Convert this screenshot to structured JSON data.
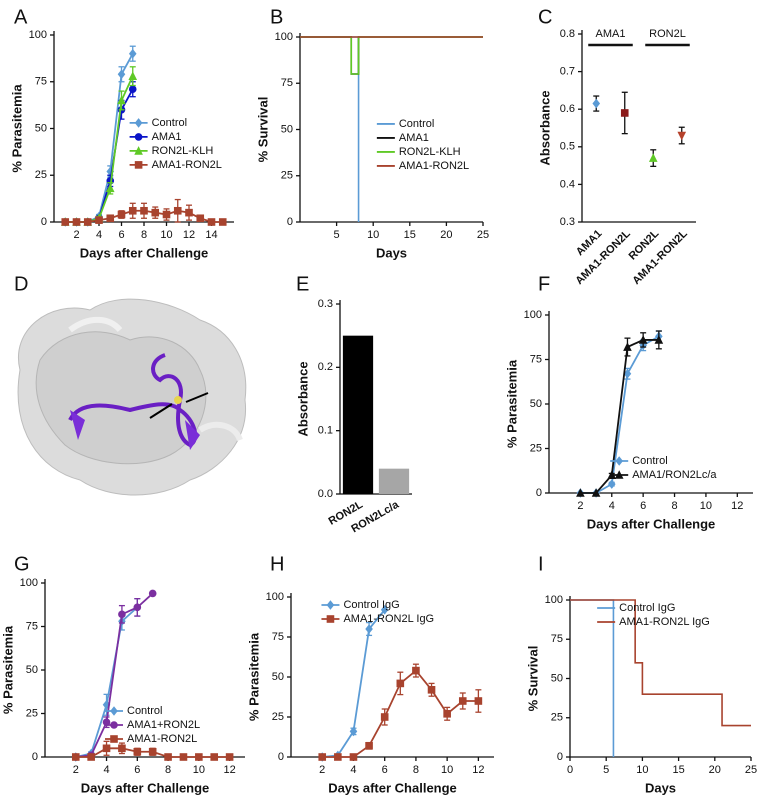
{
  "chart_data": [
    {
      "panel": "A",
      "type": "line",
      "xlabel": "Days after Challenge",
      "ylabel": "% Parasitemia",
      "xlim": [
        0,
        16
      ],
      "xticks": [
        2,
        4,
        6,
        8,
        10,
        12,
        14
      ],
      "ylim": [
        0,
        100
      ],
      "yticks": [
        0,
        25,
        50,
        75,
        100
      ],
      "legend": "center right",
      "series": [
        {
          "name": "Control",
          "color": "#5b9bd5",
          "marker": "diamond",
          "x": [
            1,
            2,
            3,
            4,
            5,
            6,
            7
          ],
          "values": [
            0,
            0,
            0,
            3,
            27,
            79,
            90
          ],
          "errors": [
            0,
            0,
            0,
            1,
            3,
            4,
            4
          ]
        },
        {
          "name": "AMA1",
          "color": "#0a14c8",
          "marker": "circle",
          "x": [
            1,
            2,
            3,
            4,
            5,
            6,
            7
          ],
          "values": [
            0,
            0,
            0,
            2,
            22,
            60,
            71
          ],
          "errors": [
            0,
            0,
            0,
            1,
            3,
            5,
            4
          ]
        },
        {
          "name": "RON2L-KLH",
          "color": "#5fc926",
          "marker": "triangle",
          "x": [
            1,
            2,
            3,
            4,
            5,
            6,
            7
          ],
          "values": [
            0,
            0,
            0,
            2,
            18,
            65,
            78
          ],
          "errors": [
            0,
            0,
            0,
            1,
            3,
            5,
            5
          ]
        },
        {
          "name": "AMA1-RON2L",
          "color": "#a8432e",
          "marker": "square",
          "x": [
            1,
            2,
            3,
            4,
            5,
            6,
            7,
            8,
            9,
            10,
            11,
            12,
            13,
            14,
            15
          ],
          "values": [
            0,
            0,
            0,
            1,
            2,
            4,
            6,
            6,
            5,
            4,
            6,
            5,
            2,
            0,
            0
          ],
          "errors": [
            0,
            0,
            0,
            1,
            1,
            2,
            4,
            4,
            3,
            3,
            6,
            4,
            1,
            0,
            0
          ]
        }
      ]
    },
    {
      "panel": "B",
      "type": "step",
      "xlabel": "Days",
      "ylabel": "% Survival",
      "xlim": [
        0,
        25
      ],
      "xticks": [
        5,
        10,
        15,
        20,
        25
      ],
      "ylim": [
        0,
        100
      ],
      "yticks": [
        0,
        25,
        50,
        75,
        100
      ],
      "legend": "center right",
      "series": [
        {
          "name": "Control",
          "color": "#5b9bd5",
          "x": [
            0,
            8
          ],
          "values": [
            100,
            0
          ]
        },
        {
          "name": "AMA1",
          "color": "#111111",
          "x": [
            0,
            7,
            8,
            25
          ],
          "values": [
            100,
            80,
            100,
            100
          ]
        },
        {
          "name": "RON2L-KLH",
          "color": "#5fc926",
          "x": [
            0,
            7,
            8,
            25
          ],
          "values": [
            100,
            80,
            100,
            100
          ]
        },
        {
          "name": "AMA1-RON2L",
          "color": "#a8432e",
          "x": [
            0,
            8,
            25
          ],
          "values": [
            100,
            100,
            100
          ]
        }
      ]
    },
    {
      "panel": "C",
      "type": "dot",
      "ylabel": "Absorbance",
      "categories": [
        "AMA1",
        "AMA1-RON2L",
        "RON2L",
        "AMA1-RON2L"
      ],
      "values": [
        0.615,
        0.59,
        0.47,
        0.53
      ],
      "errors": [
        0.02,
        0.055,
        0.022,
        0.022
      ],
      "colors": [
        "#5b9bd5",
        "#8b1a1a",
        "#5fc926",
        "#b5412b"
      ],
      "markers": [
        "diamond",
        "square",
        "triangle",
        "triangle-down"
      ],
      "annotations": [
        "AMA1",
        "RON2L"
      ],
      "ylim": [
        0.3,
        0.8
      ],
      "yticks": [
        0.3,
        0.4,
        0.5,
        0.6,
        0.7,
        0.8
      ]
    },
    {
      "panel": "D",
      "type": "image"
    },
    {
      "panel": "E",
      "type": "bar",
      "ylabel": "Absorbance",
      "categories": [
        "RON2L",
        "RON2Lc/a"
      ],
      "values": [
        0.25,
        0.04
      ],
      "colors": [
        "#000000",
        "#a6a6a6"
      ],
      "ylim": [
        0,
        0.3
      ],
      "yticks": [
        {
          "value": 0,
          "label": "0.0"
        },
        0.1,
        0.2,
        0.3
      ]
    },
    {
      "panel": "F",
      "type": "line",
      "xlabel": "Days after Challenge",
      "ylabel": "% Parasitemia",
      "xlim": [
        0,
        13
      ],
      "xticks": [
        2,
        4,
        6,
        8,
        10,
        12
      ],
      "ylim": [
        0,
        100
      ],
      "yticks": [
        0,
        25,
        50,
        75,
        100
      ],
      "legend": "lower right",
      "series": [
        {
          "name": "Control",
          "color": "#5b9bd5",
          "marker": "diamond",
          "x": [
            2,
            3,
            4,
            5,
            6,
            7
          ],
          "values": [
            0,
            0,
            5,
            67,
            83,
            88
          ],
          "errors": [
            0,
            0,
            1,
            3,
            3,
            3
          ]
        },
        {
          "name": "AMA1/RON2Lc/a",
          "color": "#111111",
          "marker": "triangle",
          "x": [
            2,
            3,
            4,
            5,
            6,
            7
          ],
          "values": [
            0,
            0,
            10,
            82,
            86,
            86
          ],
          "errors": [
            0,
            0,
            1,
            5,
            4,
            5
          ]
        }
      ]
    },
    {
      "panel": "G",
      "type": "line",
      "xlabel": "Days after Challenge",
      "ylabel": "% Parasitemia",
      "xlim": [
        0,
        13
      ],
      "xticks": [
        2,
        4,
        6,
        8,
        10,
        12
      ],
      "ylim": [
        0,
        100
      ],
      "yticks": [
        0,
        25,
        50,
        75,
        100
      ],
      "legend": "lower right",
      "series": [
        {
          "name": "Control",
          "color": "#5b9bd5",
          "marker": "diamond",
          "x": [
            2,
            3,
            4,
            5,
            6
          ],
          "values": [
            0,
            2,
            30,
            78,
            86
          ],
          "errors": [
            0,
            1,
            6,
            5,
            5
          ]
        },
        {
          "name": "AMA1+RON2L",
          "color": "#7b2fa0",
          "marker": "circle",
          "x": [
            2,
            3,
            4,
            5,
            6,
            7
          ],
          "values": [
            0,
            1,
            20,
            82,
            86,
            94
          ],
          "errors": [
            0,
            1,
            3,
            5,
            5,
            0
          ]
        },
        {
          "name": "AMA1-RON2L",
          "color": "#a8432e",
          "marker": "square",
          "x": [
            2,
            3,
            4,
            5,
            6,
            7,
            8,
            9,
            10,
            11,
            12
          ],
          "values": [
            0,
            0,
            5,
            5,
            3,
            3,
            0,
            0,
            0,
            0,
            0
          ],
          "errors": [
            0,
            0,
            4,
            3,
            2,
            2,
            0,
            0,
            0,
            0,
            0
          ]
        }
      ]
    },
    {
      "panel": "H",
      "type": "line",
      "xlabel": "Days after Challenge",
      "ylabel": "% Parasitemia",
      "xlim": [
        0,
        13
      ],
      "xticks": [
        2,
        4,
        6,
        8,
        10,
        12
      ],
      "ylim": [
        0,
        100
      ],
      "yticks": [
        0,
        25,
        50,
        75,
        100
      ],
      "legend": "upper left",
      "series": [
        {
          "name": "Control IgG",
          "color": "#5b9bd5",
          "marker": "diamond",
          "x": [
            2,
            3,
            4,
            5,
            6
          ],
          "values": [
            0,
            1,
            16,
            80,
            92
          ],
          "errors": [
            0,
            0,
            2,
            4,
            0
          ]
        },
        {
          "name": "AMA1-RON2L IgG",
          "color": "#a8432e",
          "marker": "square",
          "x": [
            2,
            3,
            4,
            5,
            6,
            7,
            8,
            9,
            10,
            11,
            12
          ],
          "values": [
            0,
            0,
            0,
            7,
            25,
            46,
            54,
            42,
            27,
            35,
            35
          ],
          "errors": [
            0,
            0,
            0,
            2,
            5,
            7,
            4,
            4,
            4,
            5,
            7
          ]
        }
      ]
    },
    {
      "panel": "I",
      "type": "step",
      "xlabel": "Days",
      "ylabel": "% Survival",
      "xlim": [
        0,
        25
      ],
      "xticks": [
        0,
        5,
        10,
        15,
        20,
        25
      ],
      "ylim": [
        0,
        100
      ],
      "yticks": [
        0,
        25,
        50,
        75,
        100
      ],
      "legend": "upper left",
      "series": [
        {
          "name": "Control IgG",
          "color": "#5b9bd5",
          "x": [
            0,
            6
          ],
          "values": [
            100,
            0
          ]
        },
        {
          "name": "AMA1-RON2L IgG",
          "color": "#a8432e",
          "x": [
            0,
            9,
            10,
            21,
            25
          ],
          "values": [
            100,
            60,
            40,
            20,
            20
          ]
        }
      ]
    }
  ]
}
